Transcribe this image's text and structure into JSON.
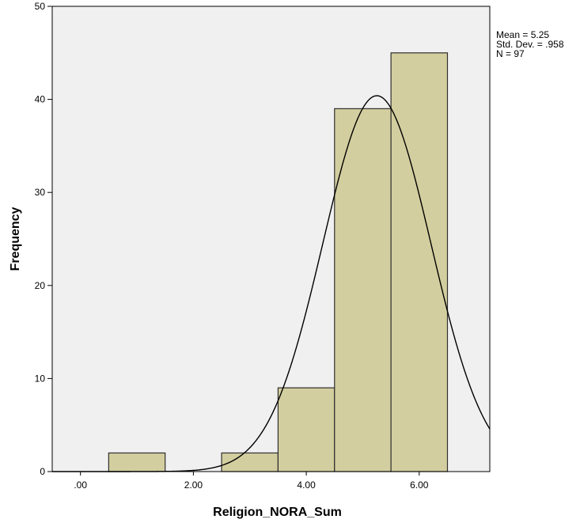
{
  "chart_data": {
    "type": "bar",
    "subtype": "histogram",
    "bins": [
      {
        "x0": 0.5,
        "x1": 1.5,
        "count": 2
      },
      {
        "x0": 2.5,
        "x1": 3.5,
        "count": 2
      },
      {
        "x0": 3.5,
        "x1": 4.5,
        "count": 9
      },
      {
        "x0": 4.5,
        "x1": 5.5,
        "count": 39
      },
      {
        "x0": 5.5,
        "x1": 6.5,
        "count": 45
      }
    ],
    "xlabel": "Religion_NORA_Sum",
    "ylabel": "Frequency",
    "xlim": [
      -0.5,
      7.25
    ],
    "ylim": [
      0,
      50
    ],
    "xticks": [
      {
        "value": 0,
        "label": ".00"
      },
      {
        "value": 2,
        "label": "2.00"
      },
      {
        "value": 4,
        "label": "4.00"
      },
      {
        "value": 6,
        "label": "6.00"
      }
    ],
    "yticks": [
      {
        "value": 0,
        "label": "0"
      },
      {
        "value": 10,
        "label": "10"
      },
      {
        "value": 20,
        "label": "20"
      },
      {
        "value": 30,
        "label": "30"
      },
      {
        "value": 40,
        "label": "40"
      },
      {
        "value": 50,
        "label": "50"
      }
    ],
    "normal_curve": {
      "mean": 5.25,
      "std": 0.958,
      "n": 97,
      "bin_width": 1
    },
    "stats_lines": [
      "Mean = 5.25",
      "Std. Dev. = .958",
      "N = 97"
    ],
    "grid": false,
    "legend": "none"
  },
  "colors": {
    "plot_background": "#f0f0f0",
    "bar_fill": "#d3ce9f",
    "bar_stroke": "#2f2f2f",
    "curve": "#000000",
    "frame": "#000000"
  }
}
